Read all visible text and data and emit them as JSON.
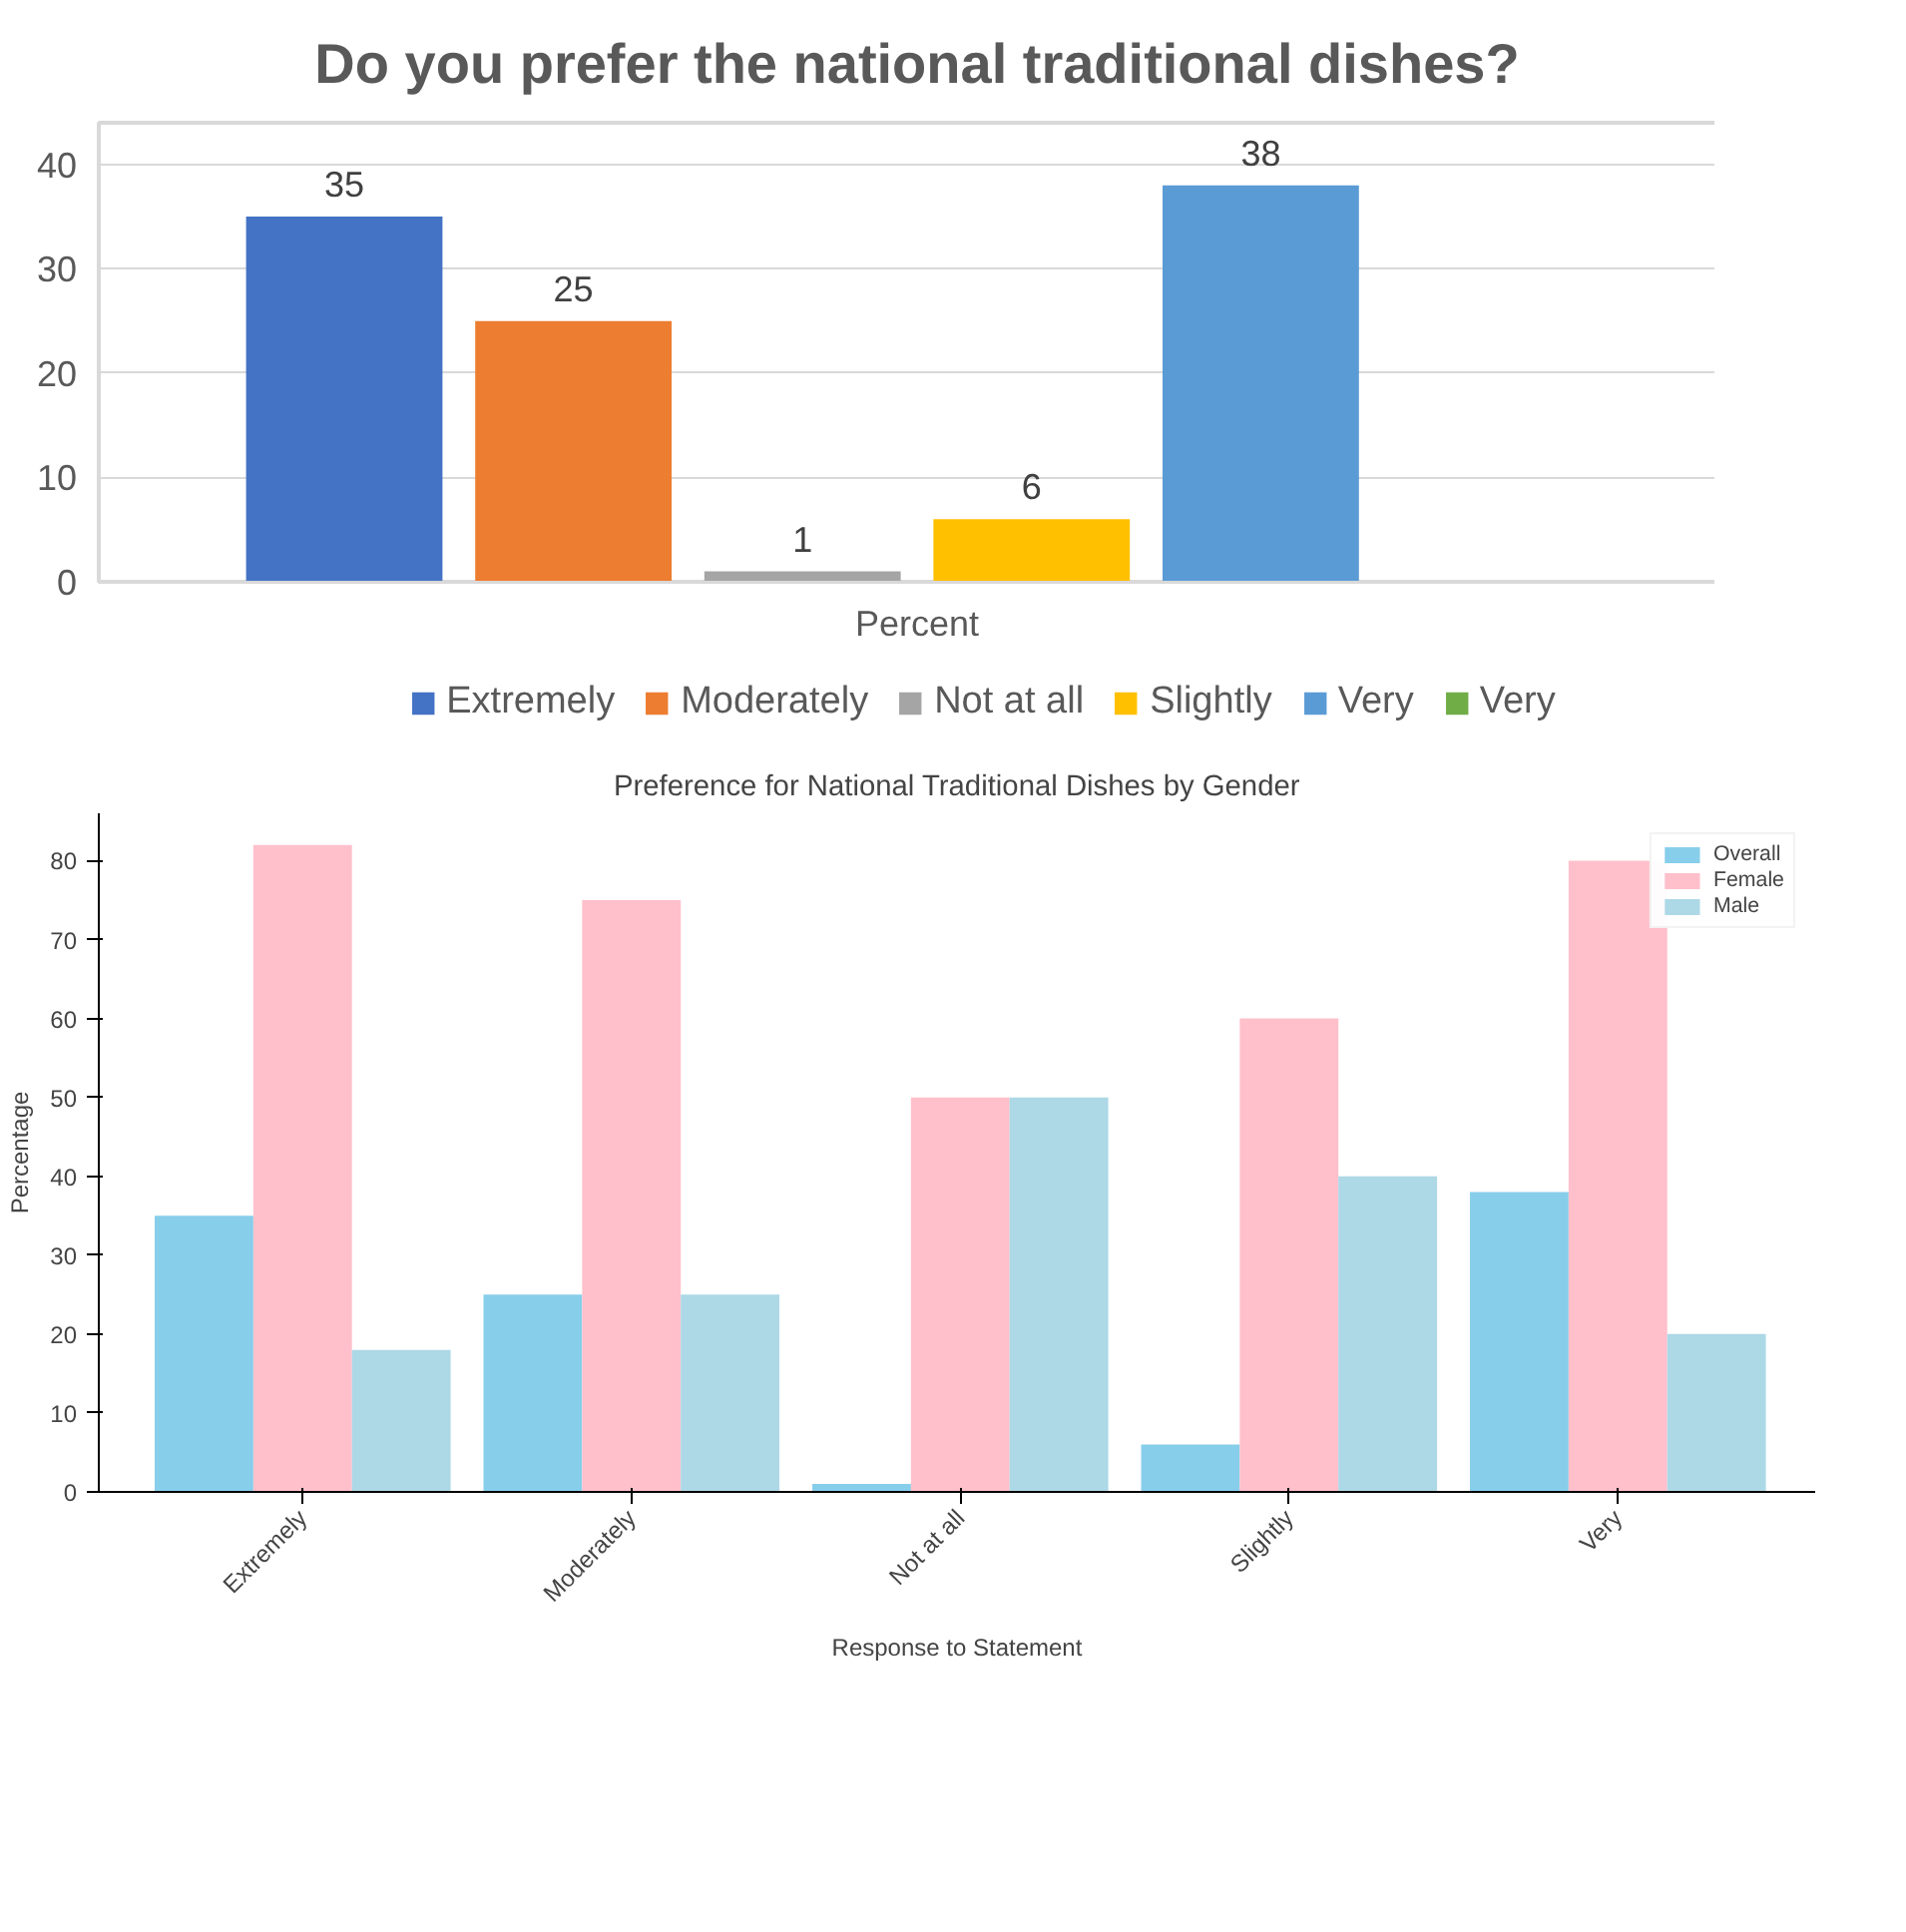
{
  "chart_data": [
    {
      "type": "bar",
      "title": "Do you prefer the national traditional dishes?",
      "categories": [
        "Percent"
      ],
      "ylim": [
        0,
        44
      ],
      "yticks": [
        0,
        10,
        20,
        30,
        40
      ],
      "grid": "y",
      "legend": "bottom",
      "data_labels": true,
      "series": [
        {
          "name": "Extremely",
          "color": "#4472c4",
          "values": [
            35
          ]
        },
        {
          "name": "Moderately",
          "color": "#ed7d31",
          "values": [
            25
          ]
        },
        {
          "name": "Not at all",
          "color": "#a5a5a5",
          "values": [
            1
          ]
        },
        {
          "name": "Slightly",
          "color": "#ffc000",
          "values": [
            6
          ]
        },
        {
          "name": "Very",
          "color": "#5b9bd5",
          "values": [
            38
          ]
        },
        {
          "name": "Very",
          "color": "#70ad47",
          "values": [
            null
          ]
        }
      ]
    },
    {
      "type": "bar",
      "title": "Preference for National Traditional Dishes by Gender",
      "xlabel": "Response to Statement",
      "ylabel": "Percentage",
      "categories": [
        "Extremely",
        "Moderately",
        "Not at all",
        "Slightly",
        "Very"
      ],
      "ylim": [
        0,
        86
      ],
      "yticks": [
        0,
        10,
        20,
        30,
        40,
        50,
        60,
        70,
        80
      ],
      "grid": false,
      "legend": "top right",
      "series": [
        {
          "name": "Overall",
          "color": "#87ceeb",
          "values": [
            35,
            25,
            1,
            6,
            38
          ]
        },
        {
          "name": "Female",
          "color": "#ffc0cb",
          "values": [
            82,
            75,
            50,
            60,
            80
          ]
        },
        {
          "name": "Male",
          "color": "#add8e6",
          "values": [
            18,
            25,
            50,
            40,
            20
          ]
        }
      ]
    }
  ]
}
